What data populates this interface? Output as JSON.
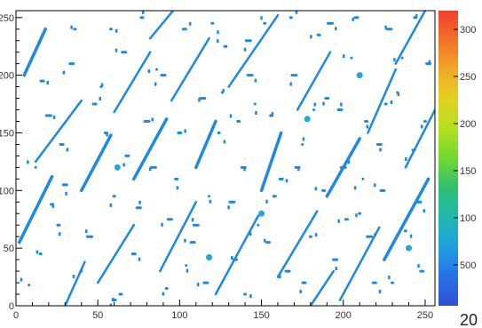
{
  "chart_data": {
    "type": "heatmap",
    "title": "",
    "xlabel": "",
    "ylabel": "",
    "xlim": [
      0,
      256
    ],
    "ylim": [
      0,
      256
    ],
    "x_ticks": [
      0,
      50,
      100,
      150,
      200,
      250
    ],
    "y_ticks": [
      0,
      50,
      100,
      150,
      200,
      250
    ],
    "colorbar": {
      "ticks": [
        "300",
        "250",
        "200",
        "150",
        "100",
        "500"
      ],
      "colors_top_to_bottom": [
        "#f04030",
        "#f47028",
        "#f0a828",
        "#e4d020",
        "#b4e020",
        "#70d830",
        "#30c070",
        "#20b8b0",
        "#20a0e0",
        "#2870e8",
        "#3050d8"
      ]
    },
    "corner_text": "20",
    "dominant_color": "#1e88e5",
    "tracks": [
      {
        "x0": 2,
        "y0": 55,
        "x1": 22,
        "y1": 112
      },
      {
        "x0": 12,
        "y0": 125,
        "x1": 40,
        "y1": 178
      },
      {
        "x0": 30,
        "y0": 0,
        "x1": 42,
        "y1": 38
      },
      {
        "x0": 40,
        "y0": 100,
        "x1": 58,
        "y1": 148
      },
      {
        "x0": 50,
        "y0": 20,
        "x1": 72,
        "y1": 70
      },
      {
        "x0": 60,
        "y0": 168,
        "x1": 82,
        "y1": 220
      },
      {
        "x0": 72,
        "y0": 110,
        "x1": 92,
        "y1": 162
      },
      {
        "x0": 88,
        "y0": 30,
        "x1": 110,
        "y1": 90
      },
      {
        "x0": 95,
        "y0": 178,
        "x1": 118,
        "y1": 232
      },
      {
        "x0": 110,
        "y0": 120,
        "x1": 122,
        "y1": 160
      },
      {
        "x0": 122,
        "y0": 10,
        "x1": 148,
        "y1": 78
      },
      {
        "x0": 130,
        "y0": 190,
        "x1": 160,
        "y1": 252
      },
      {
        "x0": 150,
        "y0": 100,
        "x1": 162,
        "y1": 150
      },
      {
        "x0": 160,
        "y0": 25,
        "x1": 184,
        "y1": 82
      },
      {
        "x0": 172,
        "y0": 170,
        "x1": 192,
        "y1": 220
      },
      {
        "x0": 190,
        "y0": 95,
        "x1": 210,
        "y1": 145
      },
      {
        "x0": 198,
        "y0": 5,
        "x1": 222,
        "y1": 68
      },
      {
        "x0": 215,
        "y0": 150,
        "x1": 232,
        "y1": 205
      },
      {
        "x0": 225,
        "y0": 40,
        "x1": 252,
        "y1": 110
      },
      {
        "x0": 232,
        "y0": 210,
        "x1": 250,
        "y1": 256
      },
      {
        "x0": 238,
        "y0": 120,
        "x1": 256,
        "y1": 170
      },
      {
        "x0": 5,
        "y0": 200,
        "x1": 18,
        "y1": 240
      },
      {
        "x0": 82,
        "y0": 232,
        "x1": 96,
        "y1": 256
      },
      {
        "x0": 180,
        "y0": 0,
        "x1": 194,
        "y1": 30
      }
    ],
    "blobs": [
      [
        8,
        18
      ],
      [
        15,
        45
      ],
      [
        22,
        88
      ],
      [
        28,
        140
      ],
      [
        34,
        210
      ],
      [
        45,
        60
      ],
      [
        52,
        190
      ],
      [
        58,
        240
      ],
      [
        64,
        10
      ],
      [
        68,
        130
      ],
      [
        75,
        85
      ],
      [
        80,
        160
      ],
      [
        86,
        205
      ],
      [
        92,
        15
      ],
      [
        98,
        110
      ],
      [
        103,
        240
      ],
      [
        108,
        55
      ],
      [
        114,
        180
      ],
      [
        118,
        95
      ],
      [
        124,
        150
      ],
      [
        128,
        225
      ],
      [
        134,
        40
      ],
      [
        139,
        120
      ],
      [
        143,
        200
      ],
      [
        148,
        70
      ],
      [
        152,
        245
      ],
      [
        156,
        165
      ],
      [
        162,
        110
      ],
      [
        166,
        30
      ],
      [
        170,
        200
      ],
      [
        175,
        140
      ],
      [
        180,
        60
      ],
      [
        185,
        235
      ],
      [
        190,
        180
      ],
      [
        195,
        40
      ],
      [
        200,
        120
      ],
      [
        205,
        215
      ],
      [
        210,
        80
      ],
      [
        214,
        160
      ],
      [
        219,
        20
      ],
      [
        224,
        100
      ],
      [
        228,
        240
      ],
      [
        233,
        185
      ],
      [
        238,
        65
      ],
      [
        243,
        135
      ],
      [
        248,
        30
      ],
      [
        252,
        210
      ],
      [
        20,
        165
      ],
      [
        40,
        30
      ],
      [
        60,
        95
      ],
      [
        77,
        250
      ],
      [
        100,
        150
      ],
      [
        116,
        20
      ],
      [
        132,
        90
      ],
      [
        146,
        175
      ],
      [
        168,
        250
      ],
      [
        188,
        100
      ],
      [
        208,
        250
      ],
      [
        222,
        140
      ],
      [
        246,
        90
      ],
      [
        12,
        120
      ],
      [
        36,
        240
      ],
      [
        55,
        150
      ],
      [
        72,
        45
      ],
      [
        90,
        200
      ],
      [
        110,
        70
      ],
      [
        126,
        185
      ],
      [
        140,
        10
      ],
      [
        158,
        95
      ],
      [
        176,
        20
      ],
      [
        198,
        170
      ],
      [
        216,
        60
      ],
      [
        236,
        215
      ],
      [
        250,
        160
      ],
      [
        26,
        70
      ],
      [
        48,
        175
      ],
      [
        66,
        220
      ],
      [
        84,
        120
      ],
      [
        104,
        35
      ],
      [
        120,
        245
      ],
      [
        136,
        160
      ],
      [
        154,
        55
      ],
      [
        172,
        120
      ],
      [
        192,
        245
      ],
      [
        212,
        110
      ],
      [
        230,
        20
      ],
      [
        244,
        250
      ],
      [
        16,
        195
      ],
      [
        94,
        75
      ],
      [
        142,
        230
      ],
      [
        182,
        170
      ],
      [
        226,
        175
      ],
      [
        202,
        75
      ],
      [
        60,
        5
      ],
      [
        30,
        105
      ]
    ],
    "hot_spots": [
      [
        178,
        162
      ],
      [
        118,
        42
      ],
      [
        62,
        120
      ],
      [
        210,
        200
      ],
      [
        150,
        80
      ],
      [
        240,
        50
      ]
    ]
  }
}
